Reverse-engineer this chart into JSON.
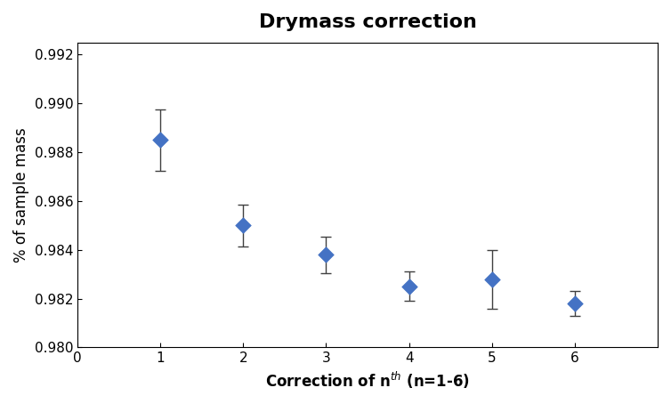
{
  "title": "Drymass correction",
  "xlabel": "Correction of n",
  "xlabel_superscript": "th",
  "xlabel_suffix": " (n=1-6)",
  "ylabel": "% of sample mass",
  "x": [
    1,
    2,
    3,
    4,
    5,
    6
  ],
  "y": [
    0.9885,
    0.985,
    0.9838,
    0.9825,
    0.9828,
    0.9818
  ],
  "yerr": [
    0.00125,
    0.00085,
    0.00075,
    0.0006,
    0.0012,
    0.0005
  ],
  "ylim": [
    0.98,
    0.9925
  ],
  "xlim": [
    0,
    7
  ],
  "yticks": [
    0.98,
    0.982,
    0.984,
    0.986,
    0.988,
    0.99,
    0.992
  ],
  "xticks": [
    0,
    1,
    2,
    3,
    4,
    5,
    6
  ],
  "marker_color": "#4472C4",
  "marker_edge_color": "#4472C4",
  "errorbar_color": "#404040",
  "background_color": "#ffffff",
  "title_fontsize": 16,
  "label_fontsize": 12,
  "tick_fontsize": 11
}
